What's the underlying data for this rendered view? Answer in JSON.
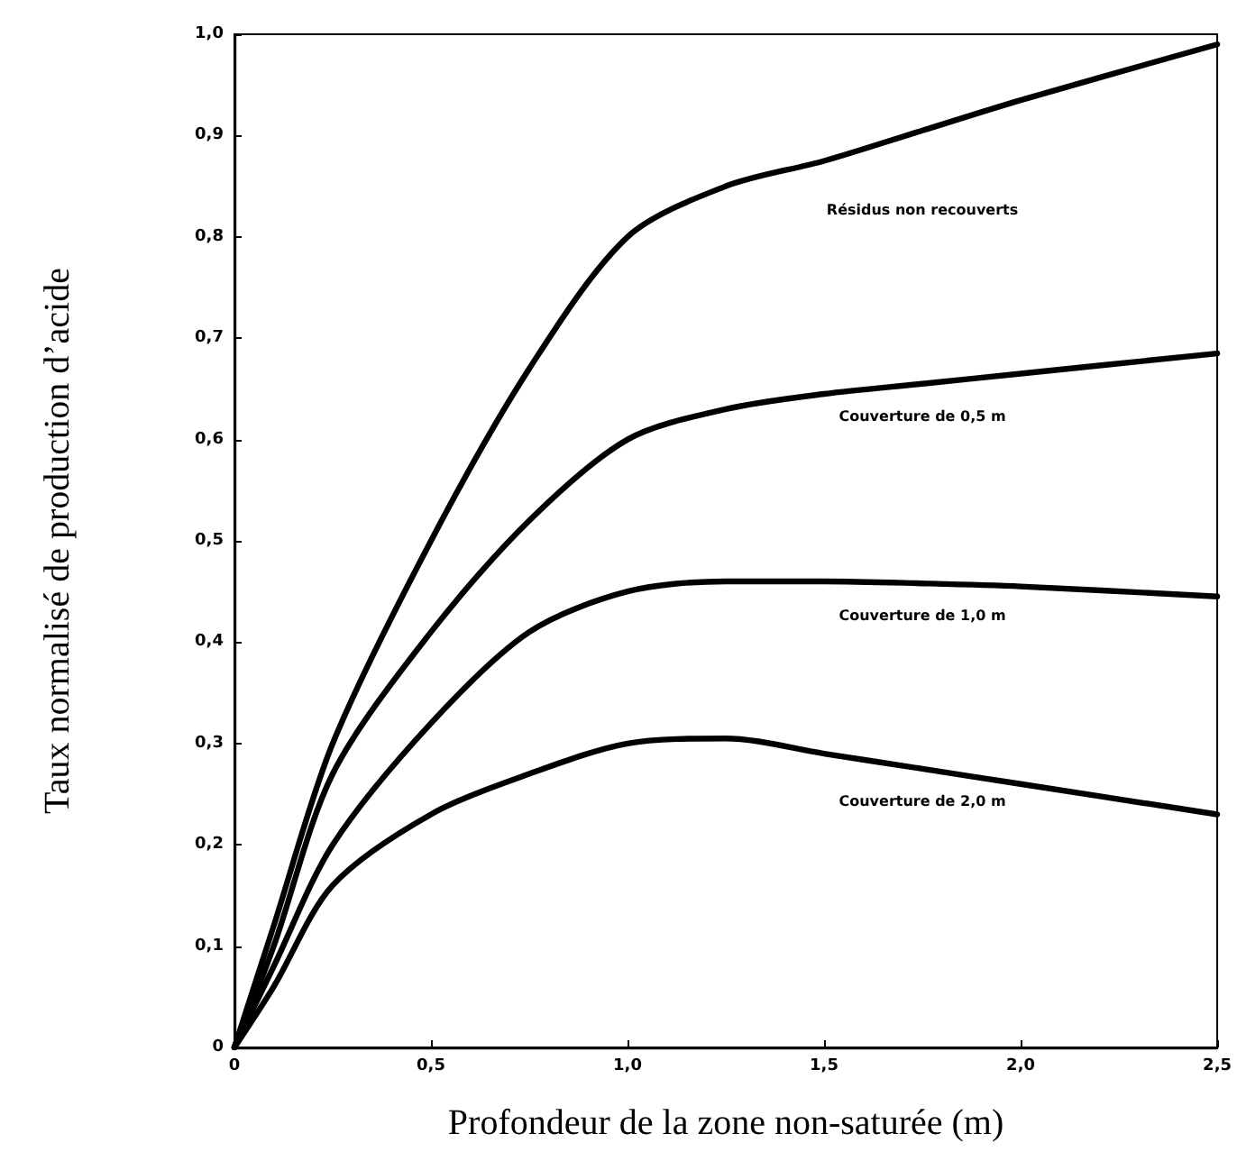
{
  "chart_data": {
    "type": "line",
    "xlabel": "Profondeur de la zone non-saturée (m)",
    "ylabel": "Taux normalisé de production d’acide",
    "x": [
      0,
      0.1,
      0.25,
      0.5,
      0.75,
      1.0,
      1.25,
      1.5,
      1.75,
      2.0,
      2.5
    ],
    "series": [
      {
        "name": "Résidus non recouverts",
        "color": "#000000",
        "values": [
          0,
          0.12,
          0.3,
          0.5,
          0.67,
          0.8,
          0.85,
          0.875,
          0.905,
          0.935,
          0.99
        ]
      },
      {
        "name": "Couverture de 0,5 m",
        "color": "#000000",
        "values": [
          0,
          0.1,
          0.27,
          0.41,
          0.52,
          0.6,
          0.63,
          0.645,
          0.655,
          0.665,
          0.685
        ]
      },
      {
        "name": "Couverture de 1,0 m",
        "color": "#000000",
        "values": [
          0,
          0.08,
          0.2,
          0.32,
          0.41,
          0.45,
          0.46,
          0.46,
          0.458,
          0.455,
          0.445
        ]
      },
      {
        "name": "Couverture de 2,0 m",
        "color": "#000000",
        "values": [
          0,
          0.06,
          0.16,
          0.23,
          0.27,
          0.3,
          0.305,
          0.29,
          0.275,
          0.26,
          0.23
        ]
      }
    ],
    "xlim": [
      0,
      2.5
    ],
    "ylim": [
      0,
      1.0
    ],
    "xticks": [
      0,
      {
        "value": 0.5,
        "label": "0,5"
      },
      {
        "value": 1.0,
        "label": "1,0"
      },
      {
        "value": 1.5,
        "label": "1,5"
      },
      {
        "value": 2.0,
        "label": "2,0"
      },
      {
        "value": 2.5,
        "label": "2,5"
      }
    ],
    "yticks": [
      0,
      {
        "value": 0.1,
        "label": "0,1"
      },
      {
        "value": 0.2,
        "label": "0,2"
      },
      {
        "value": 0.3,
        "label": "0,3"
      },
      {
        "value": 0.4,
        "label": "0,4"
      },
      {
        "value": 0.5,
        "label": "0,5"
      },
      {
        "value": 0.6,
        "label": "0,6"
      },
      {
        "value": 0.7,
        "label": "0,7"
      },
      {
        "value": 0.8,
        "label": "0,8"
      },
      {
        "value": 0.9,
        "label": "0,9"
      },
      {
        "value": 1.0,
        "label": "1,0"
      }
    ],
    "grid": false,
    "legend": false,
    "marker": "none",
    "line_style": "solid"
  }
}
